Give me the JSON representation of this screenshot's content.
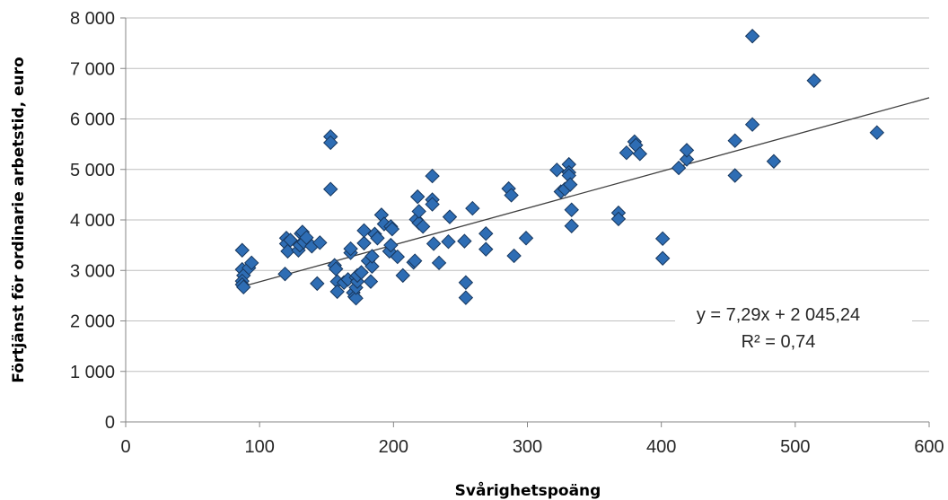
{
  "chart_data": {
    "type": "scatter",
    "title": "",
    "xlabel": "Svårighetspoäng",
    "ylabel": "Förtjänst för ordinarie arbetstid, euro",
    "xlim": [
      0,
      600
    ],
    "ylim": [
      0,
      8000
    ],
    "x_ticks": [
      0,
      100,
      200,
      300,
      400,
      500,
      600
    ],
    "x_tick_labels": [
      "0",
      "100",
      "200",
      "300",
      "400",
      "500",
      "600"
    ],
    "y_ticks": [
      0,
      1000,
      2000,
      3000,
      4000,
      5000,
      6000,
      7000,
      8000
    ],
    "y_tick_labels": [
      "0",
      "1 000",
      "2 000",
      "3 000",
      "4 000",
      "5 000",
      "6 000",
      "7 000",
      "8 000"
    ],
    "grid": "horizontal",
    "legend": "none",
    "marker": "diamond",
    "colors": {
      "marker_fill": "#2e6db4",
      "marker_stroke": "#17375e",
      "trendline": "#404040",
      "gridline": "#bfbfbf"
    },
    "trendline": {
      "type": "linear",
      "slope": 7.29,
      "intercept": 2045.24,
      "x_range": [
        87,
        600
      ],
      "equation_label": "y = 7,29x + 2 045,24",
      "r2_label": "R² = 0,74"
    },
    "series": [
      {
        "points": [
          [
            87,
            3400
          ],
          [
            87,
            3020
          ],
          [
            88,
            2900
          ],
          [
            87,
            2790
          ],
          [
            87,
            2720
          ],
          [
            88,
            2670
          ],
          [
            92,
            3050
          ],
          [
            94,
            3150
          ],
          [
            119,
            2930
          ],
          [
            120,
            3640
          ],
          [
            120,
            3530
          ],
          [
            121,
            3380
          ],
          [
            123,
            3600
          ],
          [
            129,
            3400
          ],
          [
            130,
            3500
          ],
          [
            131,
            3730
          ],
          [
            132,
            3760
          ],
          [
            133,
            3560
          ],
          [
            135,
            3650
          ],
          [
            139,
            3480
          ],
          [
            143,
            2740
          ],
          [
            145,
            3550
          ],
          [
            153,
            5650
          ],
          [
            153,
            5530
          ],
          [
            153,
            4610
          ],
          [
            156,
            3100
          ],
          [
            157,
            3030
          ],
          [
            158,
            2780
          ],
          [
            158,
            2580
          ],
          [
            163,
            2760
          ],
          [
            166,
            2820
          ],
          [
            168,
            3350
          ],
          [
            168,
            3430
          ],
          [
            170,
            2560
          ],
          [
            171,
            2480
          ],
          [
            172,
            2450
          ],
          [
            172,
            2660
          ],
          [
            172,
            2860
          ],
          [
            173,
            2780
          ],
          [
            173,
            2900
          ],
          [
            176,
            2960
          ],
          [
            178,
            3540
          ],
          [
            178,
            3790
          ],
          [
            181,
            3190
          ],
          [
            183,
            2780
          ],
          [
            184,
            3080
          ],
          [
            184,
            3280
          ],
          [
            186,
            3720
          ],
          [
            188,
            3640
          ],
          [
            191,
            4100
          ],
          [
            193,
            3920
          ],
          [
            197,
            3380
          ],
          [
            198,
            3500
          ],
          [
            198,
            3870
          ],
          [
            199,
            3820
          ],
          [
            203,
            3270
          ],
          [
            207,
            2900
          ],
          [
            215,
            3160
          ],
          [
            216,
            3190
          ],
          [
            217,
            4010
          ],
          [
            218,
            4460
          ],
          [
            219,
            3940
          ],
          [
            219,
            4170
          ],
          [
            222,
            3870
          ],
          [
            229,
            4870
          ],
          [
            229,
            4400
          ],
          [
            229,
            4310
          ],
          [
            230,
            3530
          ],
          [
            234,
            3150
          ],
          [
            241,
            3570
          ],
          [
            242,
            4060
          ],
          [
            253,
            3580
          ],
          [
            254,
            2760
          ],
          [
            254,
            2460
          ],
          [
            259,
            4230
          ],
          [
            269,
            3730
          ],
          [
            269,
            3420
          ],
          [
            286,
            4620
          ],
          [
            288,
            4490
          ],
          [
            290,
            3290
          ],
          [
            299,
            3640
          ],
          [
            322,
            4990
          ],
          [
            325,
            4560
          ],
          [
            328,
            4610
          ],
          [
            331,
            5100
          ],
          [
            331,
            4940
          ],
          [
            331,
            4880
          ],
          [
            332,
            4700
          ],
          [
            333,
            4200
          ],
          [
            333,
            3880
          ],
          [
            368,
            4140
          ],
          [
            368,
            4020
          ],
          [
            374,
            5330
          ],
          [
            380,
            5550
          ],
          [
            381,
            5480
          ],
          [
            384,
            5310
          ],
          [
            401,
            3630
          ],
          [
            401,
            3240
          ],
          [
            413,
            5030
          ],
          [
            419,
            5200
          ],
          [
            419,
            5380
          ],
          [
            455,
            5570
          ],
          [
            455,
            4880
          ],
          [
            468,
            7640
          ],
          [
            468,
            5890
          ],
          [
            484,
            5160
          ],
          [
            514,
            6760
          ],
          [
            561,
            5730
          ]
        ]
      }
    ]
  }
}
